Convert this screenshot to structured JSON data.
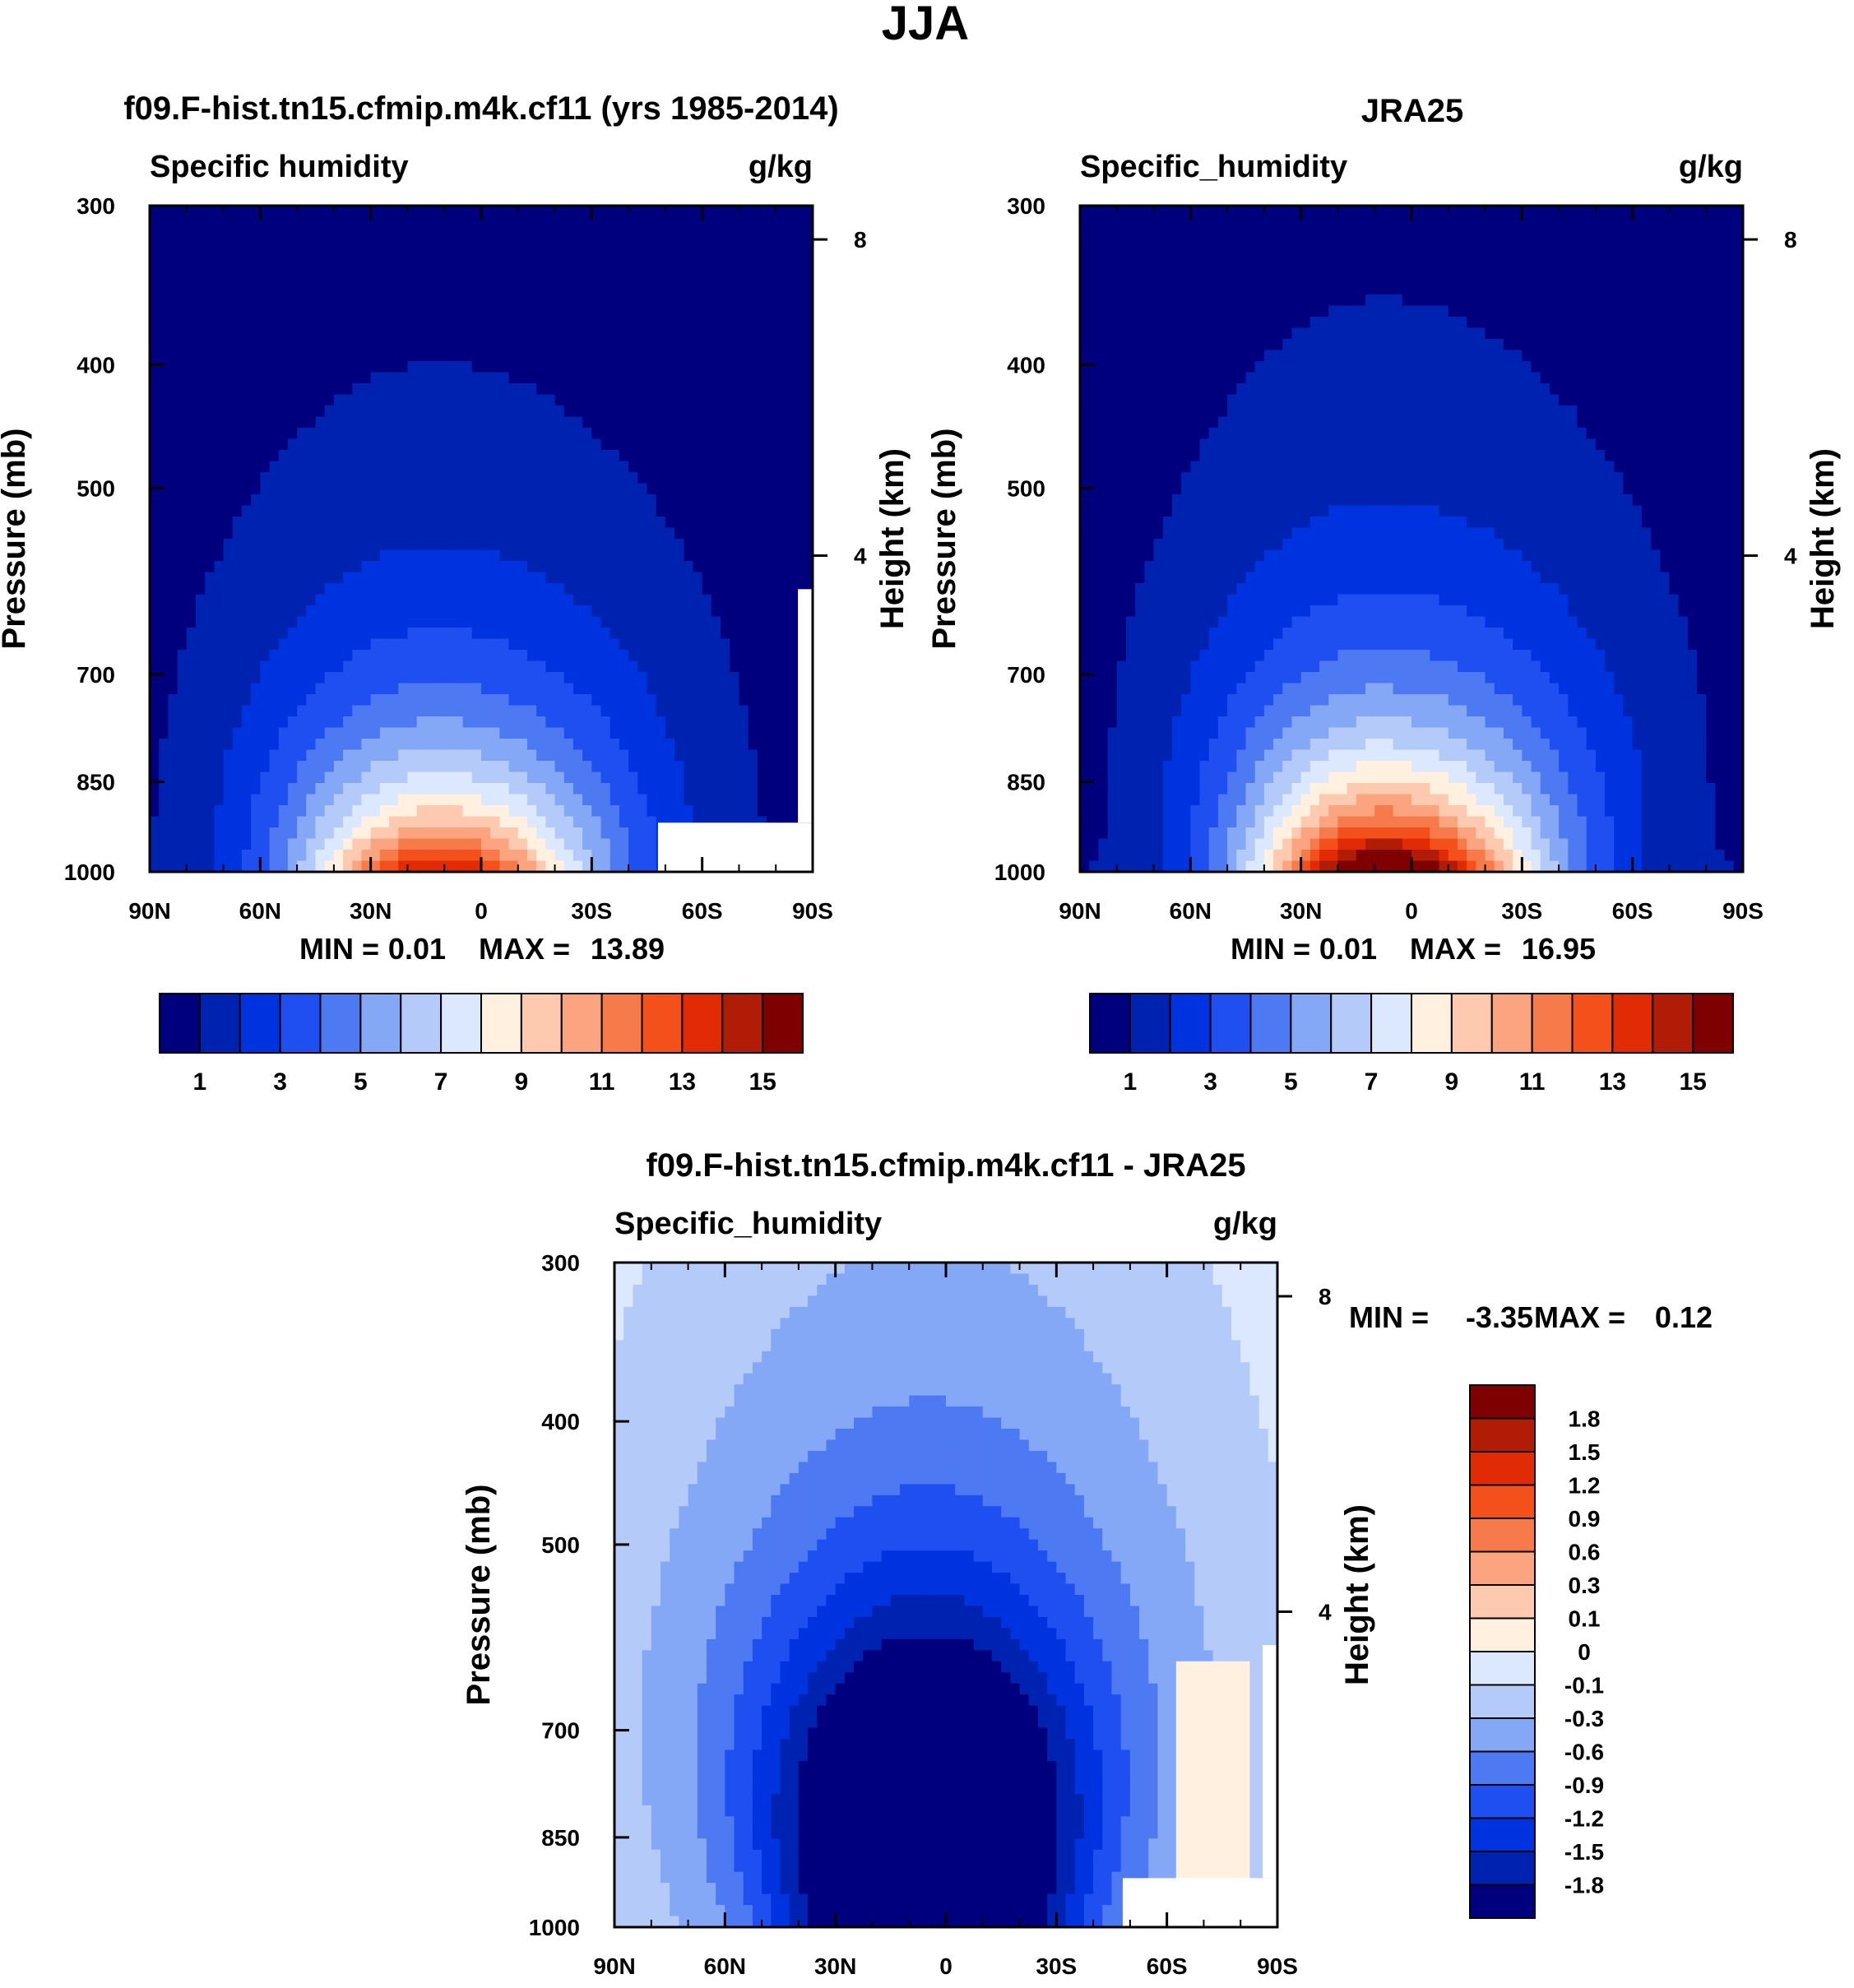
{
  "figure_title": "JJA",
  "colors": {
    "abs_palette": [
      "#00007f",
      "#0022b0",
      "#0033e0",
      "#1f4ff0",
      "#4d79f2",
      "#85a8f6",
      "#b4cbfa",
      "#dce8fd",
      "#fff0e0",
      "#fdcab0",
      "#fba47f",
      "#f77a4a",
      "#f4501c",
      "#e02b04",
      "#b01c05",
      "#7f0000"
    ],
    "diff_palette": [
      "#00007f",
      "#0022b0",
      "#0033e0",
      "#1f4ff0",
      "#4d79f2",
      "#85a8f6",
      "#b4cbfa",
      "#dce8fd",
      "#fff0e0",
      "#fdcab0",
      "#fba47f",
      "#f77a4a",
      "#f4501c",
      "#e02b04",
      "#b01c05",
      "#7f0000"
    ]
  },
  "chart_data": [
    {
      "type": "heatmap",
      "panel_title": "f09.F-hist.tn15.cfmip.m4k.cf11 (yrs 1985-2014)",
      "left_label": "Specific humidity",
      "units": "g/kg",
      "xlabel": "",
      "ylabel": "Pressure (mb)",
      "y2label": "Height (km)",
      "x_ticks": [
        "90N",
        "60N",
        "30N",
        "0",
        "30S",
        "60S",
        "90S"
      ],
      "xlim": [
        90,
        -90
      ],
      "y_ticks": [
        300,
        400,
        500,
        700,
        850,
        1000
      ],
      "ylim": [
        1000,
        300
      ],
      "y2_ticks": [
        8,
        4
      ],
      "stats": {
        "min_label": "MIN =",
        "min": "0.01",
        "max_label": "MAX =",
        "max": "13.89"
      },
      "colorbar_labels": [
        "1",
        "3",
        "5",
        "7",
        "9",
        "11",
        "13",
        "15"
      ],
      "contour_levels": [
        1,
        2,
        3,
        4,
        5,
        6,
        7,
        8,
        9,
        10,
        11,
        12,
        13,
        14,
        15
      ],
      "field": {
        "peak": 13.89,
        "center_lat": 12,
        "width_lat": 38,
        "skew_south": 1.15,
        "topo_south": 48
      }
    },
    {
      "type": "heatmap",
      "panel_title": "JRA25",
      "left_label": "Specific_humidity",
      "units": "g/kg",
      "xlabel": "",
      "ylabel": "Pressure (mb)",
      "y2label": "Height (km)",
      "x_ticks": [
        "90N",
        "60N",
        "30N",
        "0",
        "30S",
        "60S",
        "90S"
      ],
      "xlim": [
        90,
        -90
      ],
      "y_ticks": [
        300,
        400,
        500,
        700,
        850,
        1000
      ],
      "ylim": [
        1000,
        300
      ],
      "y2_ticks": [
        8,
        4
      ],
      "stats": {
        "min_label": "MIN =",
        "min": "0.01",
        "max_label": "MAX =",
        "max": "16.95"
      },
      "colorbar_labels": [
        "1",
        "3",
        "5",
        "7",
        "9",
        "11",
        "13",
        "15"
      ],
      "contour_levels": [
        1,
        2,
        3,
        4,
        5,
        6,
        7,
        8,
        9,
        10,
        11,
        12,
        13,
        14,
        15
      ],
      "field": {
        "peak": 16.95,
        "center_lat": 8,
        "width_lat": 36,
        "skew_south": 1.2,
        "topo_south": null
      }
    },
    {
      "type": "heatmap",
      "panel_title": "f09.F-hist.tn15.cfmip.m4k.cf11 - JRA25",
      "left_label": "Specific_humidity",
      "units": "g/kg",
      "xlabel": "",
      "ylabel": "Pressure (mb)",
      "y2label": "Height (km)",
      "x_ticks": [
        "90N",
        "60N",
        "30N",
        "0",
        "30S",
        "60S",
        "90S"
      ],
      "xlim": [
        90,
        -90
      ],
      "y_ticks": [
        300,
        400,
        500,
        700,
        850,
        1000
      ],
      "ylim": [
        1000,
        300
      ],
      "y2_ticks": [
        8,
        4
      ],
      "stats": {
        "min_label": "MIN =",
        "min": "-3.35",
        "max_label": "MAX =",
        "max": "0.12"
      },
      "colorbar_labels": [
        "-1.8",
        "-1.5",
        "-1.2",
        "-0.9",
        "-0.6",
        "-0.3",
        "-0.1",
        "0",
        "0.1",
        "0.3",
        "0.6",
        "0.9",
        "1.2",
        "1.5",
        "1.8"
      ],
      "contour_levels": [
        -1.8,
        -1.5,
        -1.2,
        -0.9,
        -0.6,
        -0.3,
        -0.1,
        0,
        0.1,
        0.3,
        0.6,
        0.9,
        1.2,
        1.5,
        1.8
      ],
      "field": {
        "peak": -3.35,
        "center_lat": 5,
        "width_lat": 40,
        "skew_south": 1.0,
        "topo_south": 48
      }
    }
  ]
}
